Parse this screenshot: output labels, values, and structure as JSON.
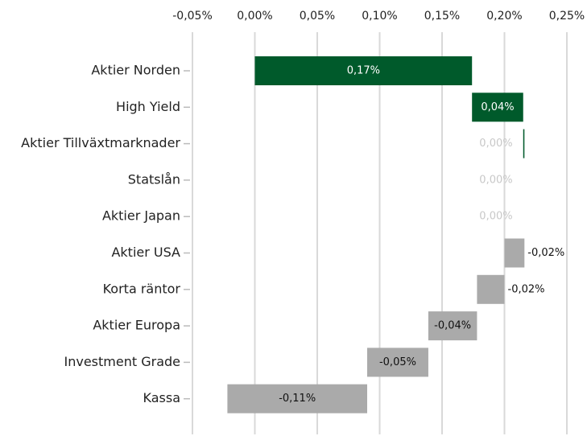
{
  "chart_data": {
    "type": "waterfall",
    "orientation": "horizontal",
    "categories": [
      "Aktier Norden",
      "High Yield",
      "Aktier Tillväxtmarknader",
      "Statslån",
      "Aktier Japan",
      "Aktier USA",
      "Korta räntor",
      "Aktier Europa",
      "Investment Grade",
      "Kassa"
    ],
    "values": [
      0.174,
      0.041,
      0.001,
      0,
      0,
      -0.016,
      -0.022,
      -0.039,
      -0.049,
      -0.112
    ],
    "value_labels": [
      "0,17%",
      "0,04%",
      "0,00%",
      "0,00%",
      "0,00%",
      "-0,02%",
      "-0,02%",
      "-0,04%",
      "-0,05%",
      "-0,11%"
    ],
    "positive_color": "#005a2b",
    "negative_color": "#aaaaaa",
    "xlim": [
      -0.05,
      0.25
    ],
    "xticks": [
      {
        "value": -0.05,
        "label": "-0,05%"
      },
      {
        "value": 0,
        "label": "0,00%"
      },
      {
        "value": 0.05,
        "label": "0,05%"
      },
      {
        "value": 0.1,
        "label": "0,10%"
      },
      {
        "value": 0.15,
        "label": "0,15%"
      },
      {
        "value": 0.2,
        "label": "0,20%"
      },
      {
        "value": 0.25,
        "label": "0,25%"
      }
    ],
    "grid": true
  }
}
